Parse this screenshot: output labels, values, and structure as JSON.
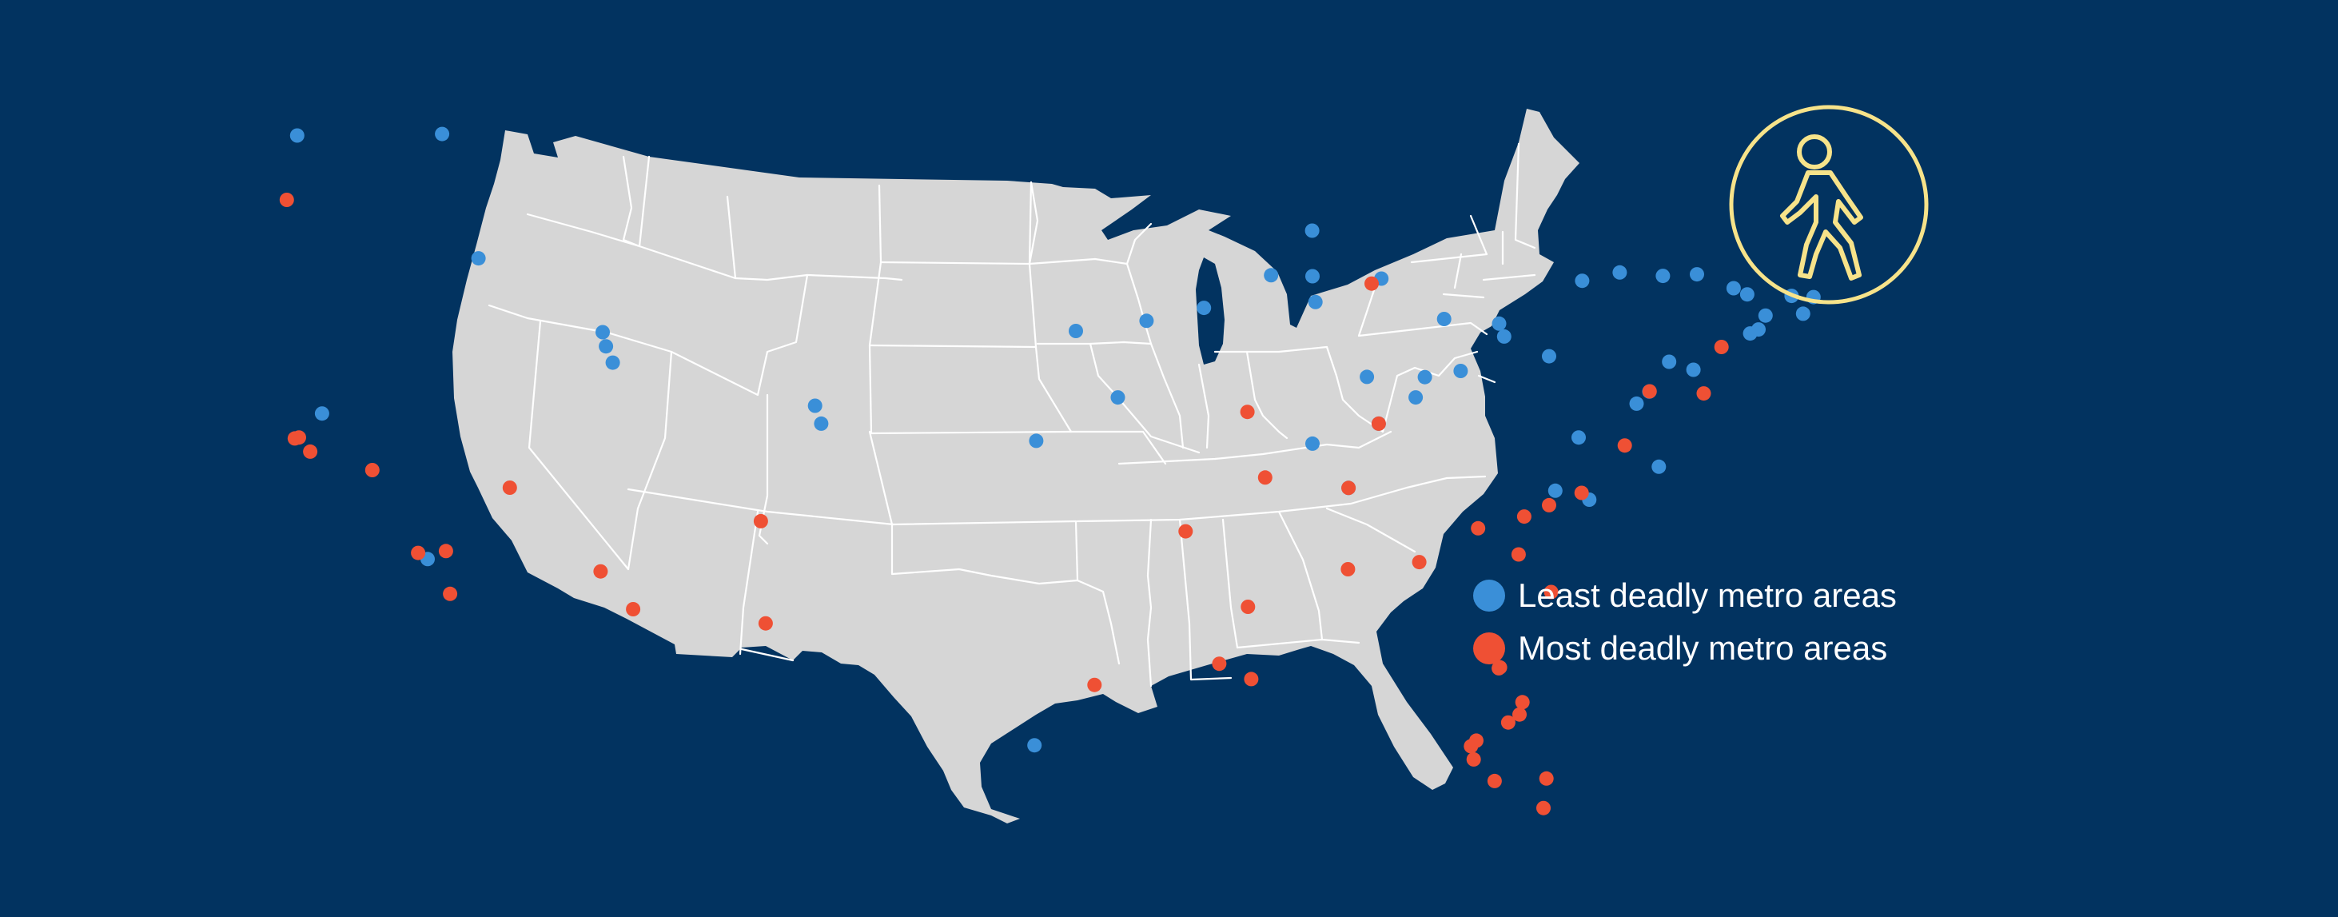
{
  "colors": {
    "background": "#023360",
    "land": "#d6d6d6",
    "border": "#ffffff",
    "least": "#3a8fd8",
    "most": "#ef5034",
    "icon": "#f7e38a"
  },
  "icon": {
    "name": "pedestrian-icon"
  },
  "legend": {
    "least_label": "Least deadly metro areas",
    "most_label": "Most deadly metro areas"
  },
  "markers": {
    "least": [
      [
        -122.33,
        47.61
      ],
      [
        -117.43,
        47.66
      ],
      [
        -116.2,
        43.62
      ],
      [
        -111.89,
        40.76
      ],
      [
        -112.0,
        41.22
      ],
      [
        -111.66,
        40.23
      ],
      [
        -104.82,
        38.83
      ],
      [
        -104.61,
        38.25
      ],
      [
        -121.49,
        38.58
      ],
      [
        -117.92,
        33.85
      ],
      [
        -97.4,
        27.8
      ],
      [
        -97.34,
        37.69
      ],
      [
        -94.58,
        39.1
      ],
      [
        -96.0,
        41.26
      ],
      [
        -93.61,
        41.59
      ],
      [
        -91.67,
        42.01
      ],
      [
        -88.01,
        44.52
      ],
      [
        -89.4,
        43.07
      ],
      [
        -88.0,
        43.04
      ],
      [
        -87.9,
        42.2
      ],
      [
        -85.67,
        42.96
      ],
      [
        -83.55,
        41.65
      ],
      [
        -84.2,
        39.76
      ],
      [
        -84.51,
        39.1
      ],
      [
        -82.99,
        39.96
      ],
      [
        -81.52,
        41.08
      ],
      [
        -81.69,
        41.5
      ],
      [
        -80.0,
        40.44
      ],
      [
        -78.88,
        42.89
      ],
      [
        -77.61,
        43.16
      ],
      [
        -76.15,
        43.05
      ],
      [
        -75.0,
        43.1
      ],
      [
        -73.76,
        42.65
      ],
      [
        -72.68,
        41.76
      ],
      [
        -71.41,
        41.82
      ],
      [
        -72.92,
        41.31
      ],
      [
        -73.2,
        41.18
      ],
      [
        -73.3,
        42.45
      ],
      [
        -71.06,
        42.36
      ],
      [
        -71.8,
        42.4
      ],
      [
        -75.12,
        40.0
      ],
      [
        -75.94,
        40.26
      ],
      [
        -76.61,
        39.29
      ],
      [
        -77.04,
        38.9
      ],
      [
        -79.0,
        37.8
      ],
      [
        -76.29,
        36.85
      ],
      [
        -78.64,
        35.78
      ],
      [
        -79.79,
        36.07
      ],
      [
        -86.16,
        39.77
      ],
      [
        -85.76,
        38.25
      ],
      [
        -86.78,
        36.16
      ],
      [
        -88.0,
        37.6
      ]
    ],
    "most": [
      [
        -122.68,
        45.52
      ],
      [
        -122.27,
        37.8
      ],
      [
        -122.41,
        37.77
      ],
      [
        -121.89,
        37.34
      ],
      [
        -119.79,
        36.74
      ],
      [
        -118.24,
        34.05
      ],
      [
        -117.16,
        32.72
      ],
      [
        -117.3,
        34.11
      ],
      [
        -115.14,
        36.17
      ],
      [
        -112.07,
        33.45
      ],
      [
        -110.97,
        32.22
      ],
      [
        -106.65,
        35.08
      ],
      [
        -106.49,
        31.76
      ],
      [
        -95.37,
        29.76
      ],
      [
        -92.29,
        34.75
      ],
      [
        -90.2,
        38.63
      ],
      [
        -90.07,
        29.95
      ],
      [
        -91.15,
        30.45
      ],
      [
        -90.18,
        32.3
      ],
      [
        -85.76,
        38.25
      ],
      [
        -86.78,
        36.16
      ],
      [
        -86.8,
        33.52
      ],
      [
        -84.39,
        33.75
      ],
      [
        -81.03,
        34.0
      ],
      [
        -82.4,
        34.85
      ],
      [
        -80.84,
        35.23
      ],
      [
        -79.93,
        32.78
      ],
      [
        -81.66,
        30.33
      ],
      [
        -81.38,
        28.54
      ],
      [
        -82.46,
        27.95
      ],
      [
        -82.64,
        27.77
      ],
      [
        -82.55,
        27.34
      ],
      [
        -81.84,
        26.64
      ],
      [
        -80.19,
        25.76
      ],
      [
        -80.09,
        26.72
      ],
      [
        -80.9,
        29.2
      ],
      [
        -81.0,
        28.8
      ],
      [
        -77.44,
        37.54
      ],
      [
        -76.6,
        39.3
      ],
      [
        -74.17,
        40.74
      ],
      [
        -74.77,
        39.23
      ],
      [
        -80.0,
        35.6
      ],
      [
        -78.9,
        36.0
      ],
      [
        -86.0,
        42.8
      ],
      [
        -89.6,
        36.5
      ],
      [
        -81.7,
        30.3
      ]
    ]
  }
}
